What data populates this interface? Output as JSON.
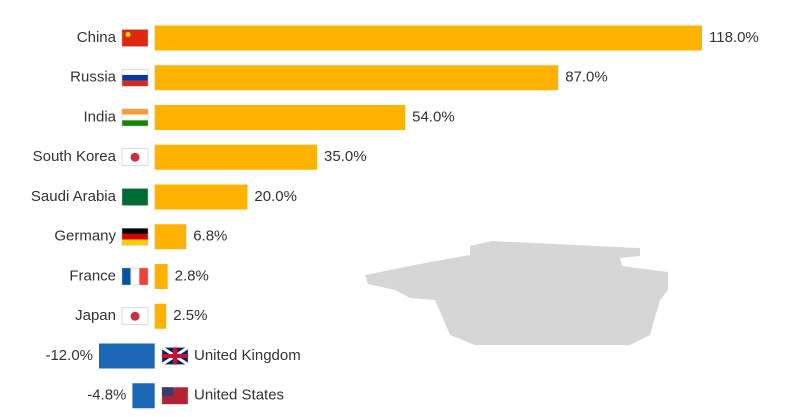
{
  "chart_data": {
    "type": "bar",
    "orientation": "horizontal",
    "categories": [
      "China",
      "Russia",
      "India",
      "South Korea",
      "Saudi Arabia",
      "Germany",
      "France",
      "Japan",
      "United Kingdom",
      "United States"
    ],
    "values": [
      118.0,
      87.0,
      54.0,
      35.0,
      20.0,
      6.8,
      2.8,
      2.5,
      -12.0,
      -4.8
    ],
    "value_labels": [
      "118.0%",
      "87.0%",
      "54.0%",
      "35.0%",
      "20.0%",
      "6.8%",
      "2.8%",
      "2.5%",
      "-12.0%",
      "-4.8%"
    ],
    "positive_color": "#ffb300",
    "negative_color": "#1b66b5",
    "xlim": [
      -12,
      118
    ]
  }
}
